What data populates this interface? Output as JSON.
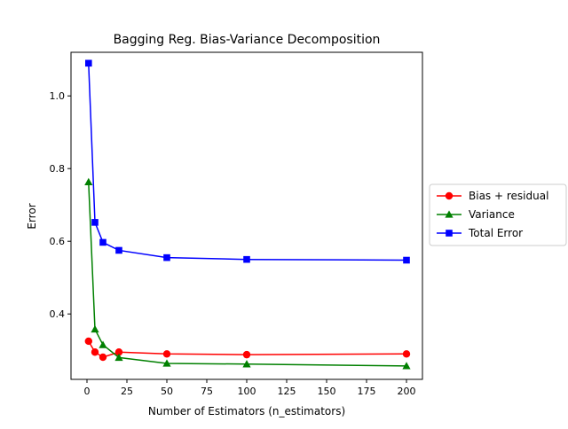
{
  "chart_data": {
    "type": "line",
    "title": "Bagging Reg. Bias-Variance Decomposition",
    "xlabel": "Number of Estimators (n_estimators)",
    "ylabel": "Error",
    "xlim": [
      -10,
      210
    ],
    "ylim": [
      0.22,
      1.12
    ],
    "xticks": [
      0,
      25,
      50,
      75,
      100,
      125,
      150,
      175,
      200
    ],
    "yticks": [
      0.4,
      0.6,
      0.8,
      1.0
    ],
    "xtick_labels": [
      "0",
      "25",
      "50",
      "75",
      "100",
      "125",
      "150",
      "175",
      "200"
    ],
    "ytick_labels": [
      "0.4",
      "0.6",
      "0.8",
      "1.0"
    ],
    "grid": false,
    "legend_position": "outside-right",
    "x": [
      1,
      5,
      10,
      20,
      50,
      100,
      200
    ],
    "series": [
      {
        "name": "Bias + residual",
        "color": "#ff0000",
        "marker": "circle",
        "values": [
          0.325,
          0.295,
          0.281,
          0.295,
          0.29,
          0.288,
          0.29
        ]
      },
      {
        "name": "Variance",
        "color": "#008000",
        "marker": "triangle",
        "values": [
          0.763,
          0.358,
          0.315,
          0.28,
          0.264,
          0.262,
          0.257
        ]
      },
      {
        "name": "Total Error",
        "color": "#0000ff",
        "marker": "square",
        "values": [
          1.09,
          0.652,
          0.597,
          0.575,
          0.555,
          0.55,
          0.548
        ]
      }
    ]
  }
}
